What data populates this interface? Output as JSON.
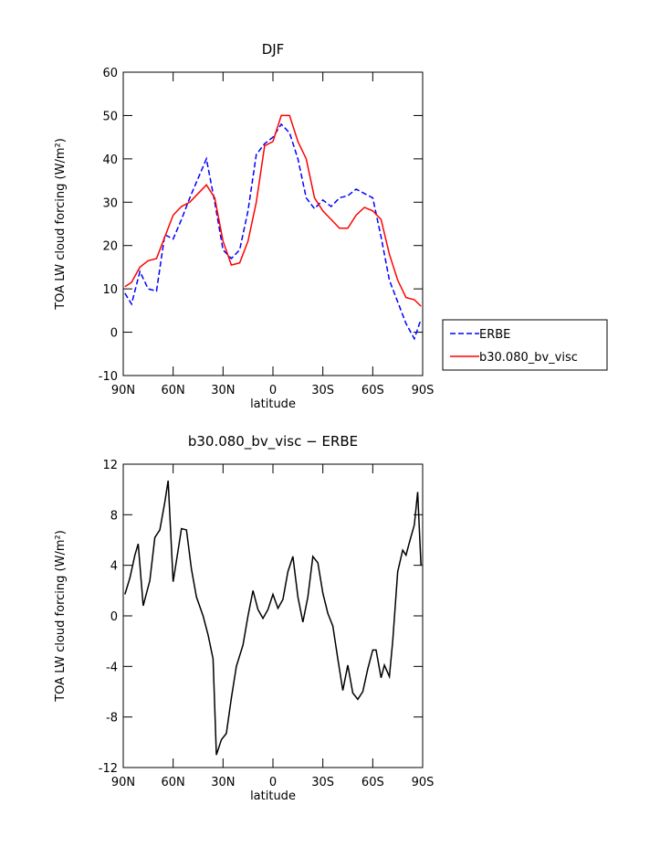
{
  "chart_data": [
    {
      "type": "line",
      "title": "DJF",
      "xlabel": "latitude",
      "ylabel": "TOA LW cloud forcing (W/m²)",
      "x": [
        89,
        85,
        80,
        75,
        70,
        65,
        60,
        55,
        50,
        45,
        40,
        35,
        30,
        25,
        20,
        15,
        10,
        5,
        0,
        -5,
        -10,
        -15,
        -20,
        -25,
        -30,
        -35,
        -40,
        -45,
        -50,
        -55,
        -60,
        -65,
        -70,
        -75,
        -80,
        -85,
        -89
      ],
      "xlim": [
        90,
        -90
      ],
      "xticks": [
        {
          "value": 90,
          "label": "90N"
        },
        {
          "value": 60,
          "label": "60N"
        },
        {
          "value": 30,
          "label": "30N"
        },
        0,
        {
          "value": -30,
          "label": "30S"
        },
        {
          "value": -60,
          "label": "60S"
        },
        {
          "value": -90,
          "label": "90S"
        }
      ],
      "ylim": [
        -10,
        60
      ],
      "yticks": [
        -10,
        0,
        10,
        20,
        30,
        40,
        50,
        60
      ],
      "legend": "outside right",
      "series": [
        {
          "name": "ERBE",
          "color": "#0000ff",
          "linestyle": "dashed",
          "values": [
            9,
            6.5,
            14,
            10,
            9.5,
            22.5,
            21.5,
            26,
            31,
            35.5,
            40,
            30,
            19,
            17,
            19,
            28,
            41,
            43.5,
            45,
            48,
            46,
            40,
            31,
            28.5,
            30.5,
            29,
            31,
            31.5,
            33,
            32,
            31,
            22,
            12,
            7,
            2,
            -1.5,
            3
          ]
        },
        {
          "name": "b30.080_bv_visc",
          "color": "#ff0000",
          "linestyle": "solid",
          "values": [
            10.5,
            11.5,
            15,
            16.5,
            17,
            22,
            27,
            29,
            30,
            32,
            34,
            31,
            21,
            15.5,
            16,
            21,
            30,
            43,
            44,
            50,
            50,
            44,
            40,
            31,
            28,
            26,
            24,
            24,
            27,
            28.8,
            28,
            26,
            18,
            12,
            8,
            7.5,
            6
          ]
        }
      ]
    },
    {
      "type": "line",
      "title": "b30.080_bv_visc − ERBE",
      "xlabel": "latitude",
      "ylabel": "TOA LW cloud forcing (W/m²)",
      "x": [
        89,
        86,
        83,
        81,
        78,
        74,
        71,
        68,
        65,
        63,
        60,
        57,
        55,
        52,
        49,
        46,
        42,
        39,
        36,
        34,
        31,
        28,
        25,
        22,
        18,
        15,
        12,
        9,
        6,
        3,
        0,
        -3,
        -6,
        -9,
        -12,
        -15,
        -18,
        -21,
        -24,
        -27,
        -30,
        -33,
        -36,
        -39,
        -42,
        -45,
        -48,
        -51,
        -54,
        -57,
        -60,
        -62,
        -65,
        -67,
        -70,
        -72,
        -75,
        -78,
        -80,
        -82,
        -85,
        -87,
        -89
      ],
      "xlim": [
        90,
        -90
      ],
      "xticks": [
        {
          "value": 90,
          "label": "90N"
        },
        {
          "value": 60,
          "label": "60N"
        },
        {
          "value": 30,
          "label": "30N"
        },
        0,
        {
          "value": -30,
          "label": "30S"
        },
        {
          "value": -60,
          "label": "60S"
        },
        {
          "value": -90,
          "label": "90S"
        }
      ],
      "ylim": [
        -12,
        12
      ],
      "yticks": [
        -12,
        -8,
        -4,
        0,
        4,
        8,
        12
      ],
      "series": [
        {
          "color": "#000000",
          "linestyle": "solid",
          "values": [
            1.7,
            3,
            4.8,
            5.7,
            0.8,
            2.8,
            6.2,
            6.8,
            9,
            10.7,
            2.7,
            5.2,
            6.9,
            6.8,
            3.7,
            1.5,
            0,
            -1.5,
            -3.4,
            -11,
            -9.8,
            -9.3,
            -6.5,
            -4,
            -2.3,
            0,
            2,
            0.5,
            -0.2,
            0.5,
            1.7,
            0.6,
            1.3,
            3.5,
            4.7,
            1.5,
            -0.5,
            1.5,
            4.7,
            4.2,
            1.8,
            0.2,
            -0.8,
            -3.4,
            -5.9,
            -3.9,
            -6.1,
            -6.6,
            -6,
            -4.2,
            -2.7,
            -2.7,
            -4.9,
            -3.9,
            -4.8,
            -2,
            3.5,
            5.2,
            4.8,
            5.8,
            7.2,
            9.8,
            4
          ]
        }
      ]
    }
  ]
}
